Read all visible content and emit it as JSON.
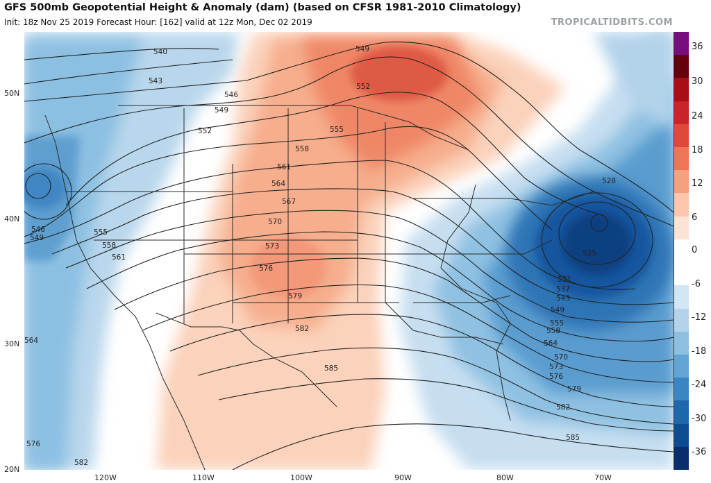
{
  "header": {
    "title": "GFS 500mb Geopotential Height & Anomaly (dam) (based on CFSR 1981-2010 Climatology)",
    "subtitle": "Init: 18z Nov 25 2019   Forecast Hour: [162]   valid at 12z Mon, Dec 02 2019",
    "brand": "TROPICALTIDBITS.COM"
  },
  "axes": {
    "lat_labels": [
      "50N",
      "40N",
      "30N",
      "20N"
    ],
    "lon_labels": [
      "120W",
      "110W",
      "100W",
      "90W",
      "80W",
      "70W"
    ]
  },
  "colorbar": {
    "labels": [
      "36",
      "30",
      "24",
      "18",
      "12",
      "6",
      "0",
      "-6",
      "-12",
      "-18",
      "-24",
      "-30",
      "-36"
    ],
    "colors": [
      "#7a0c7e",
      "#67000d",
      "#a50f15",
      "#c8252a",
      "#de4a3a",
      "#ee7556",
      "#f7a07e",
      "#fcc7ad",
      "#fde3d4",
      "#ffffff",
      "#ffffff",
      "#d3e6f3",
      "#b3d3ea",
      "#8dbfe0",
      "#62a4d4",
      "#3b85c3",
      "#1f67ad",
      "#0d4b92",
      "#082f6b"
    ]
  },
  "contours": {
    "labels": [
      "540",
      "543",
      "546",
      "549",
      "552",
      "555",
      "558",
      "561",
      "564",
      "567",
      "570",
      "573",
      "576",
      "579",
      "582",
      "585",
      "528",
      "525",
      "531",
      "537",
      "543",
      "549",
      "555",
      "558",
      "564",
      "570",
      "573",
      "576",
      "579",
      "582",
      "585",
      "546",
      "549",
      "555",
      "558",
      "561",
      "564",
      "576",
      "582",
      "549",
      "552"
    ]
  },
  "colors": {
    "line": "#222222",
    "border": "#333333"
  }
}
